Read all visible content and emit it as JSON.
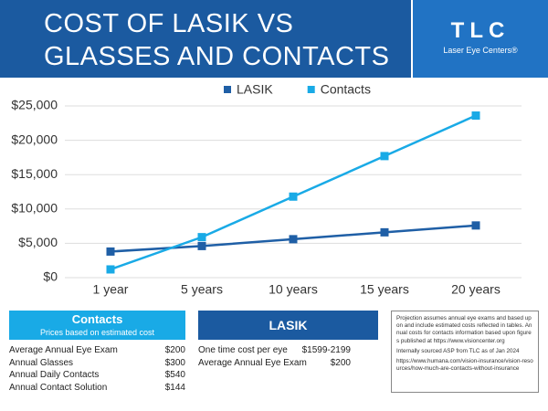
{
  "header": {
    "title_lines": [
      "COST OF LASIK VS",
      "GLASSES AND CONTACTS"
    ],
    "logo": "TLC",
    "logo_subtitle": "Laser Eye Centers®"
  },
  "chart_data": {
    "type": "line",
    "categories": [
      "1 year",
      "5 years",
      "10 years",
      "15 years",
      "20 years"
    ],
    "series": [
      {
        "name": "LASIK",
        "color": "#1f5fa6",
        "values": [
          3800,
          4600,
          5600,
          6600,
          7600
        ]
      },
      {
        "name": "Contacts",
        "color": "#19aae6",
        "values": [
          1200,
          5900,
          11800,
          17700,
          23600
        ]
      }
    ],
    "ylim": [
      0,
      25000
    ],
    "yticks": [
      {
        "value": 0,
        "label": "$0"
      },
      {
        "value": 5000,
        "label": "$5,000"
      },
      {
        "value": 10000,
        "label": "$10,000"
      },
      {
        "value": 15000,
        "label": "$15,000"
      },
      {
        "value": 20000,
        "label": "$20,000"
      },
      {
        "value": 25000,
        "label": "$25,000"
      }
    ],
    "grid": true,
    "legend": "top"
  },
  "contacts": {
    "title": "Contacts",
    "subtitle": "Prices based on estimated cost",
    "rows": [
      [
        "Average Annual Eye Exam",
        "$200"
      ],
      [
        "Annual Glasses",
        "$300"
      ],
      [
        "Annual Daily Contacts",
        "$540"
      ],
      [
        "Annual Contact Solution",
        "$144"
      ]
    ]
  },
  "lasik": {
    "title": "LASIK",
    "rows": [
      [
        "One time cost per eye",
        "$1599-2199"
      ],
      [
        "Average Annual Eye Exam",
        "$200"
      ]
    ]
  },
  "notes": [
    "Projection assumes annual eye exams and based upon and include estimated costs reflected in tables. Annual costs for contacts information based upon figures published at https://www.visioncenter.org",
    "Internally sourced ASP from TLC as of Jan 2024",
    "https://www.humana.com/vision-insurance/vision-resources/how-much-are-contacts-without-insurance"
  ]
}
